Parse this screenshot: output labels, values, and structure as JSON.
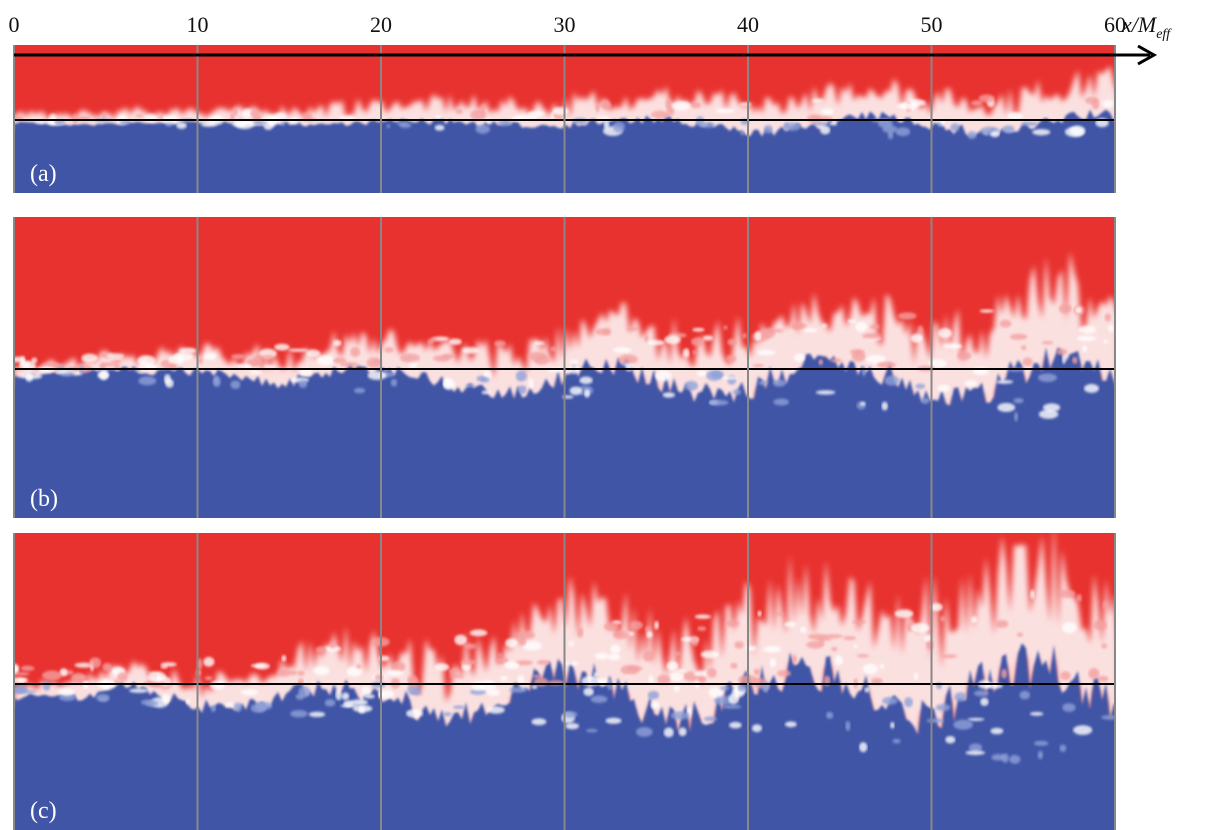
{
  "axis": {
    "lim": [
      0,
      60
    ],
    "ticks": [
      0,
      10,
      20,
      30,
      40,
      50,
      60
    ],
    "label": "x/M",
    "label_subscript": "eff"
  },
  "panels": [
    {
      "label": "(a)"
    },
    {
      "label": "(b)"
    },
    {
      "label": "(c)"
    }
  ]
}
